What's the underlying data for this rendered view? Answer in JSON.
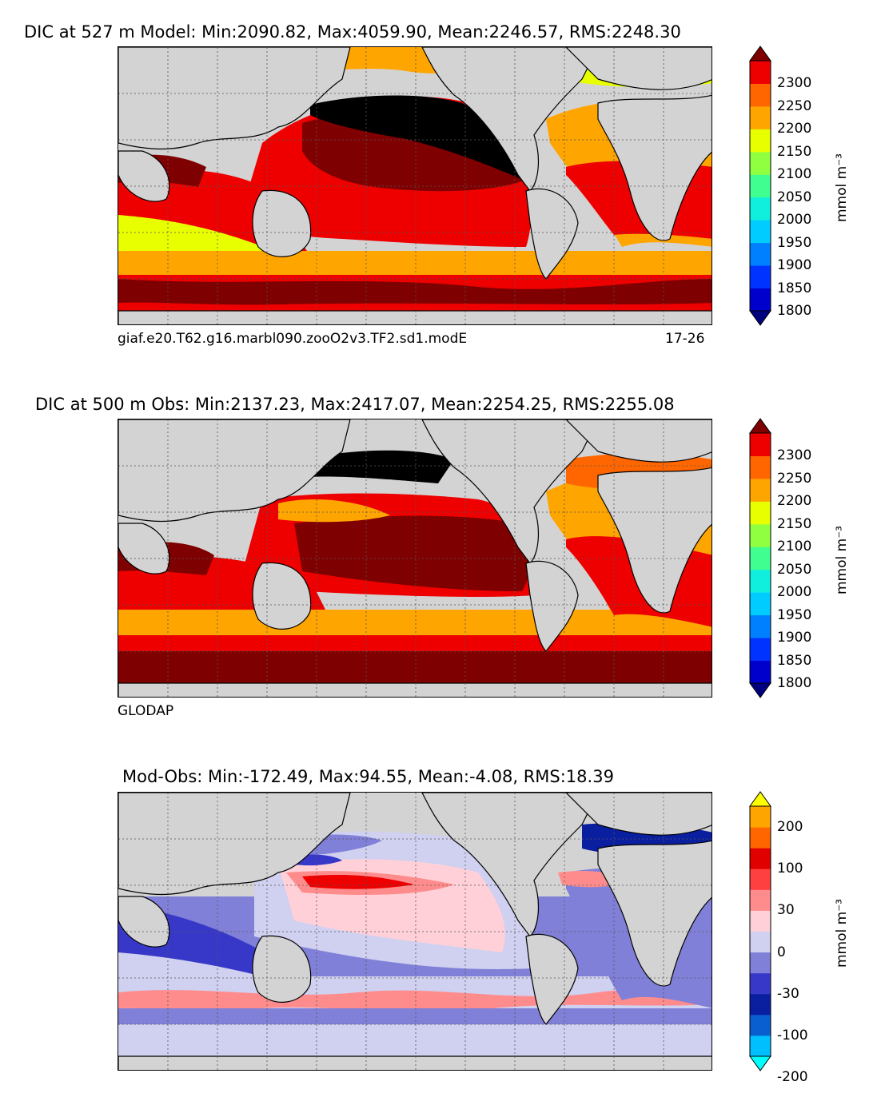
{
  "panels": [
    {
      "title": "DIC at 527 m Model: Min:2090.82, Max:4059.90, Mean:2246.57, RMS:2248.30",
      "caption_left": "giaf.e20.T62.g16.marbl090.zooO2v3.TF2.sd1.modE",
      "caption_right": "17-26",
      "colorbar_label": "mmol m⁻³",
      "colorbar_ticks": [
        "2300",
        "2250",
        "2200",
        "2150",
        "2100",
        "2050",
        "2000",
        "1950",
        "1900",
        "1850",
        "1800"
      ]
    },
    {
      "title": "DIC at 500 m Obs: Min:2137.23, Max:2417.07, Mean:2254.25, RMS:2255.08",
      "caption_left": "GLODAP",
      "caption_right": "",
      "colorbar_label": "mmol m⁻³",
      "colorbar_ticks": [
        "2300",
        "2250",
        "2200",
        "2150",
        "2100",
        "2050",
        "2000",
        "1950",
        "1900",
        "1850",
        "1800"
      ]
    },
    {
      "title": "Mod-Obs: Min:-172.49, Max:94.55, Mean:-4.08, RMS:18.39",
      "caption_left": "",
      "caption_right": "",
      "colorbar_label": "mmol m⁻³",
      "colorbar_ticks": [
        "200",
        "100",
        "30",
        "0",
        "-30",
        "-100",
        "-200"
      ]
    }
  ],
  "colors": {
    "dic_scale": [
      "#00007f",
      "#0000cc",
      "#0033ff",
      "#0080ff",
      "#00ccff",
      "#10eedd",
      "#40ff90",
      "#90ff40",
      "#e8ff00",
      "#ffa500",
      "#ff6600",
      "#ee0000",
      "#7f0000"
    ],
    "diff_scale": [
      "#00ffff",
      "#00bfff",
      "#0a5fd0",
      "#0a1fa0",
      "#3838c8",
      "#8080d8",
      "#d0d0f0",
      "#ffd0d8",
      "#ff8c8c",
      "#ff4040",
      "#e00000",
      "#ff6600",
      "#ffa500",
      "#ffff00"
    ],
    "land": "#d3d3d3",
    "black_core": "#000000"
  }
}
